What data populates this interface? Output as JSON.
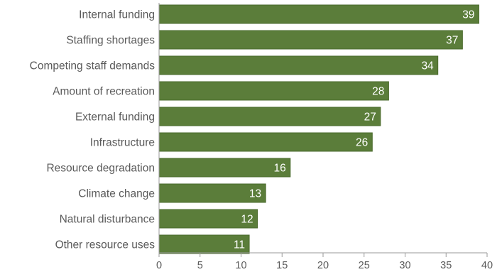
{
  "chart_data": {
    "type": "bar",
    "orientation": "horizontal",
    "categories": [
      "Internal funding",
      "Staffing shortages",
      "Competing staff demands",
      "Amount of recreation",
      "External funding",
      "Infrastructure",
      "Resource degradation",
      "Climate change",
      "Natural disturbance",
      "Other resource uses"
    ],
    "values": [
      39,
      37,
      34,
      28,
      27,
      26,
      16,
      13,
      12,
      11
    ],
    "xlim": [
      0,
      40
    ],
    "xticks": [
      0,
      5,
      10,
      15,
      20,
      25,
      30,
      35,
      40
    ],
    "title": "",
    "xlabel": "",
    "ylabel": "",
    "grid": false,
    "data_labels": "inside-end",
    "colors": {
      "bar": "#5b7d3a",
      "bar_edge": "#4a6a2c",
      "bar_label": "#ffffff",
      "axis": "#9a9a9a",
      "text": "#5a5a5a"
    }
  }
}
